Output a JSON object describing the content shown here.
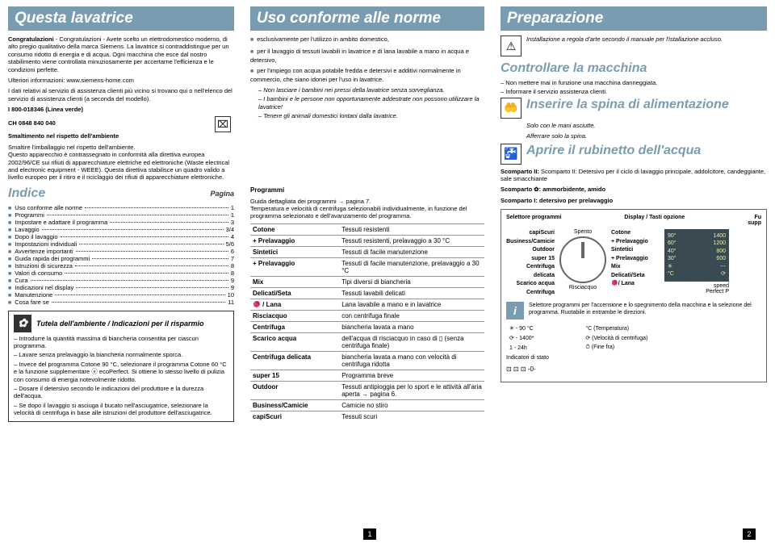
{
  "col1": {
    "title": "Questa lavatrice",
    "intro1": "Congratulazioni - Avete scelto un elettrodomestico moderno, di alto pregio qualitativo della marca Siemens. La lavatrice si contraddistingue per un consumo ridotto di energia e di acqua. Ogni macchina che esce dal nostro stabilimento viene controllata minuziosamente per accertarne l'efficienza e le condizioni perfette.",
    "moreinfo": "Ulteriori informazioni: www.siemens-home.com",
    "service": "I dati relativi al servizio di assistenza clienti più vicino si trovano qui o nell'elenco del servizio di assistenza clienti (a seconda del modello).",
    "phone_i": "I 800-018346 (Linea verde)",
    "phone_ch": "CH 0848 840 040",
    "dispose_title": "Smaltimento nel rispetto dell'ambiente",
    "dispose_text": "Smaltire l'imballaggio nel rispetto dell'ambiente.\nQuesto apparecchio è contrassegnato in conformità alla direttiva europea 2002/96/CE sui rifiuti di apparecchiature elettriche ed elettroniche (Waste electrical and electronic equipment - WEEE). Questa direttiva stabilisce un quadro valido a livello europeo per il ritiro e il riciclaggio dei rifiuti di apparecchiature elettroniche.",
    "index_title": "Indice",
    "pagina": "Pagina",
    "toc": [
      {
        "label": "Uso conforme alle norme",
        "page": "1"
      },
      {
        "label": "Programmi",
        "page": "1"
      },
      {
        "label": "Impostare e adattare il programma",
        "page": "3"
      },
      {
        "label": "Lavaggio",
        "page": "3/4"
      },
      {
        "label": "Dopo il lavaggio",
        "page": "4"
      },
      {
        "label": "Impostazioni individuali",
        "page": "5/6"
      },
      {
        "label": "Avvertenze importanti",
        "page": "6"
      },
      {
        "label": "Guida rapida dei programmi",
        "page": "7"
      },
      {
        "label": "Istruzioni di sicurezza",
        "page": "8"
      },
      {
        "label": "Valori di consumo",
        "page": "8"
      },
      {
        "label": "Cura",
        "page": "9"
      },
      {
        "label": "Indicazioni nel display",
        "page": "9"
      },
      {
        "label": "Manutenzione",
        "page": "10"
      },
      {
        "label": "Cosa fare se",
        "page": "11"
      }
    ],
    "eco_title": "Tutela dell'ambiente / Indicazioni per il risparmio",
    "eco": [
      "Introdurre la quantità massima di biancheria consentita per ciascun programma.",
      "Lavare senza prelavaggio la biancheria normalmente sporca.",
      "Invece del programma Cotone 90 °C, selezionare il programma Cotone 60 °C e la funzione supplementare ⓔ ecoPerfect. Si ottiene lo stesso livello di pulizia con consumo di energia notevolmente ridotto.",
      "Dosare il detersivo secondo le indicazioni del produttore e la durezza dell'acqua.",
      "Se dopo il lavaggio si asciuga il bucato nell'asciugatrice, selezionare la velocità di centrifuga in base alle istruzioni del produttore dell'asciugatrice."
    ]
  },
  "col2": {
    "title": "Uso conforme alle norme",
    "bullets": [
      "esclusivamente per l'utilizzo in ambito domestico,",
      "per il lavaggio di tessuti lavabili in lavatrice e di lana lavabile a mano in acqua e detersivo,",
      "per l'impiego con acqua potabile fredda e detersivi e additivi normalmente in commercio, che siano idonei per l'uso in lavatrice."
    ],
    "warn": [
      "Non lasciare i bambini nei pressi della lavatrice senza sorveglianza.",
      "I bambini e le persone non opportunamente addestrate non possono utilizzare la lavatrice!",
      "Tenere gli animali domestici lontani dalla lavatrice."
    ],
    "prog_title": "Programmi",
    "prog_intro": "Guida dettagliata dei programmi → pagina 7.\nTemperatura e velocità di centrifuga selezionabili individualmente, in funzione del programma selezionato e dell'avanzamento del programma.",
    "table": [
      [
        "Cotone",
        "Tessuti resistenti"
      ],
      [
        "+ Prelavaggio",
        "Tessuti resistenti, prelavaggio a 30 °C"
      ],
      [
        "Sintetici",
        "Tessuti di facile manutenzione"
      ],
      [
        "+ Prelavaggio",
        "Tessuti di facile manutenzione, prelavaggio a 30 °C"
      ],
      [
        "Mix",
        "Tipi diversi di biancheria"
      ],
      [
        "Delicati/Seta",
        "Tessuti lavabili delicati"
      ],
      [
        "🧶 / Lana",
        "Lana lavabile a mano e in lavatrice"
      ],
      [
        "Risciacquo",
        "con centrifuga finale"
      ],
      [
        "Centrifuga",
        "biancheria lavata a mano"
      ],
      [
        "Scarico acqua",
        "dell'acqua di risciacquo in caso di ▯ (senza centrifuga finale)"
      ],
      [
        "Centrifuga delicata",
        "biancheria lavata a mano con velocità di centrifuga ridotta"
      ],
      [
        "super 15",
        "Programma breve"
      ],
      [
        "Outdoor",
        "Tessuti antipioggia per lo sport e le attività all'aria aperta → pagina 6."
      ],
      [
        "Business/Camicie",
        "Camicie no stiro"
      ],
      [
        "capiScuri",
        "Tessuti scuri"
      ]
    ]
  },
  "col3": {
    "title": "Preparazione",
    "install": "Installazione a regola d'arte secondo il manuale per l'istallazione accluso.",
    "check_title": "Controllare la macchina",
    "check": [
      "Non mettere mai in funzione una macchina danneggiata.",
      "Informare il servizio assistenza clienti."
    ],
    "plug_title": "Inserire la spina di alimentazione",
    "plug_note1": "Solo con le mani asciutte.",
    "plug_note2": "Afferrare solo la spina.",
    "water_title": "Aprire il rubinetto dell'acqua",
    "comp2": "Scomparto II: Detersivo per il ciclo di lavaggio principale, addolcitore, candeggiante, sale smacchiante",
    "comp_soft": "Scomparto ✿: ammorbidente, amido",
    "comp1": "Scomparto I: detersivo per prelavaggio",
    "panel": {
      "sel_title": "Selettore programmi",
      "disp_title": "Display / Tasti opzione",
      "fu": "Fu\nsupp",
      "left": [
        "capiScuri",
        "Business/Camicie",
        "Outdoor",
        "super 15",
        "Centrifuga delicata",
        "Scarico acqua",
        "Centrifuga"
      ],
      "top": "Spento",
      "right": [
        "Cotone",
        "+ Prelavaggio",
        "Sintetici",
        "+ Prelavaggio",
        "Mix",
        "Delicati/Seta",
        "🧶/ Lana"
      ],
      "bottom": "Risciacquo",
      "display": [
        [
          "90°",
          "1400"
        ],
        [
          "60°",
          "1200"
        ],
        [
          "40°",
          "800"
        ],
        [
          "30°",
          "600"
        ],
        [
          "✳",
          "---"
        ],
        [
          "°C",
          "⟳"
        ]
      ],
      "speed": "speed\nPerfect  P",
      "info": "Selettore programmi per l'accensione e lo spegnimento della macchina e la selezione del programma. Ruotabile in entrambe le direzioni.",
      "legend": [
        [
          "✳ - 90 °C",
          "°C (Temperatura)"
        ],
        [
          "⟳ - 1400*",
          "⟳ (Velocità di centrifuga)"
        ],
        [
          "1 - 24h",
          "⏱ (Fine fra)"
        ]
      ],
      "status": "Indicatori di stato",
      "symbols": "⊡ ⊡ ⊡  -0-"
    }
  },
  "pages": {
    "p1": "1",
    "p2": "2"
  }
}
